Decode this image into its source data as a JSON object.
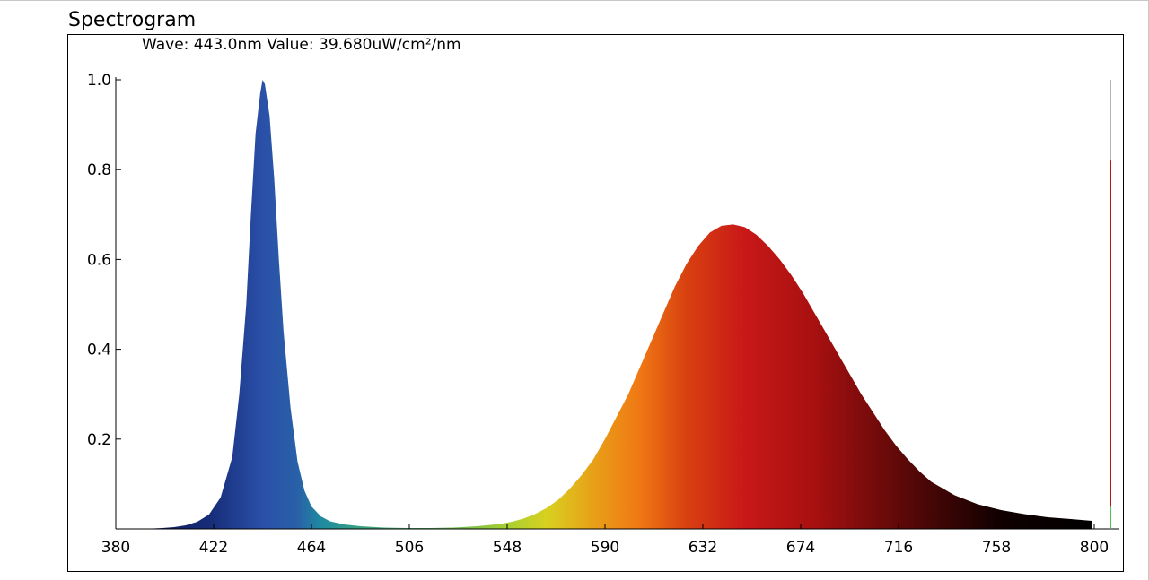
{
  "panel": {
    "title": "Spectrogram",
    "readout": "Wave: 443.0nm Value: 39.680uW/cm²/nm"
  },
  "chart_data": {
    "type": "area",
    "title": "",
    "xlabel": "",
    "ylabel": "",
    "xlim": [
      380,
      800
    ],
    "ylim": [
      0,
      1.0
    ],
    "grid": false,
    "legend": "none",
    "x_ticks": [
      "380",
      "422",
      "464",
      "506",
      "548",
      "590",
      "632",
      "674",
      "716",
      "758",
      "800"
    ],
    "y_ticks": [
      "0.2",
      "0.4",
      "0.6",
      "0.8",
      "1.0"
    ],
    "fill": "wavelength-colored spectrum",
    "series": [
      {
        "x": [
          392,
          400,
          405,
          410,
          415,
          420,
          425,
          430,
          433,
          436,
          438,
          440,
          442,
          443,
          444,
          446,
          448,
          450,
          452,
          455,
          458,
          461,
          464,
          468,
          472,
          478,
          485,
          495,
          505,
          515,
          525,
          535,
          545,
          550,
          555,
          560,
          565,
          570,
          575,
          580,
          585,
          590,
          595,
          600,
          605,
          610,
          615,
          620,
          625,
          630,
          635,
          640,
          645,
          650,
          655,
          660,
          665,
          670,
          675,
          680,
          685,
          690,
          695,
          700,
          705,
          710,
          715,
          720,
          725,
          730,
          740,
          750,
          760,
          770,
          780,
          790,
          799
        ],
        "y": [
          0.0,
          0.002,
          0.004,
          0.008,
          0.016,
          0.032,
          0.07,
          0.16,
          0.3,
          0.5,
          0.7,
          0.88,
          0.97,
          1.0,
          0.99,
          0.92,
          0.78,
          0.6,
          0.44,
          0.27,
          0.15,
          0.085,
          0.05,
          0.028,
          0.017,
          0.01,
          0.006,
          0.003,
          0.002,
          0.002,
          0.003,
          0.006,
          0.011,
          0.016,
          0.023,
          0.033,
          0.047,
          0.065,
          0.09,
          0.12,
          0.155,
          0.2,
          0.25,
          0.3,
          0.36,
          0.42,
          0.48,
          0.54,
          0.59,
          0.63,
          0.66,
          0.675,
          0.678,
          0.672,
          0.655,
          0.63,
          0.6,
          0.565,
          0.525,
          0.48,
          0.435,
          0.39,
          0.345,
          0.3,
          0.26,
          0.22,
          0.185,
          0.155,
          0.128,
          0.105,
          0.075,
          0.055,
          0.042,
          0.033,
          0.026,
          0.022,
          0.018
        ]
      }
    ]
  },
  "colors": {
    "stops": [
      {
        "wave": 392,
        "color": "#10185a"
      },
      {
        "wave": 420,
        "color": "#162c78"
      },
      {
        "wave": 443,
        "color": "#2a50a8"
      },
      {
        "wave": 458,
        "color": "#2960a8"
      },
      {
        "wave": 468,
        "color": "#1f8aa0"
      },
      {
        "wave": 485,
        "color": "#38a080"
      },
      {
        "wave": 515,
        "color": "#50b060"
      },
      {
        "wave": 548,
        "color": "#a8d030"
      },
      {
        "wave": 565,
        "color": "#d8d020"
      },
      {
        "wave": 585,
        "color": "#e8a018"
      },
      {
        "wave": 605,
        "color": "#f07814"
      },
      {
        "wave": 625,
        "color": "#d84010"
      },
      {
        "wave": 650,
        "color": "#c81818"
      },
      {
        "wave": 680,
        "color": "#a81010"
      },
      {
        "wave": 720,
        "color": "#580808"
      },
      {
        "wave": 760,
        "color": "#100000"
      },
      {
        "wave": 800,
        "color": "#000000"
      }
    ],
    "sidebar_bar": {
      "gray": "#b4b4b4",
      "red": "#b41414",
      "green": "#50c050"
    }
  },
  "sidebar_level": {
    "red_top": 0.82,
    "green_top": 0.05
  }
}
